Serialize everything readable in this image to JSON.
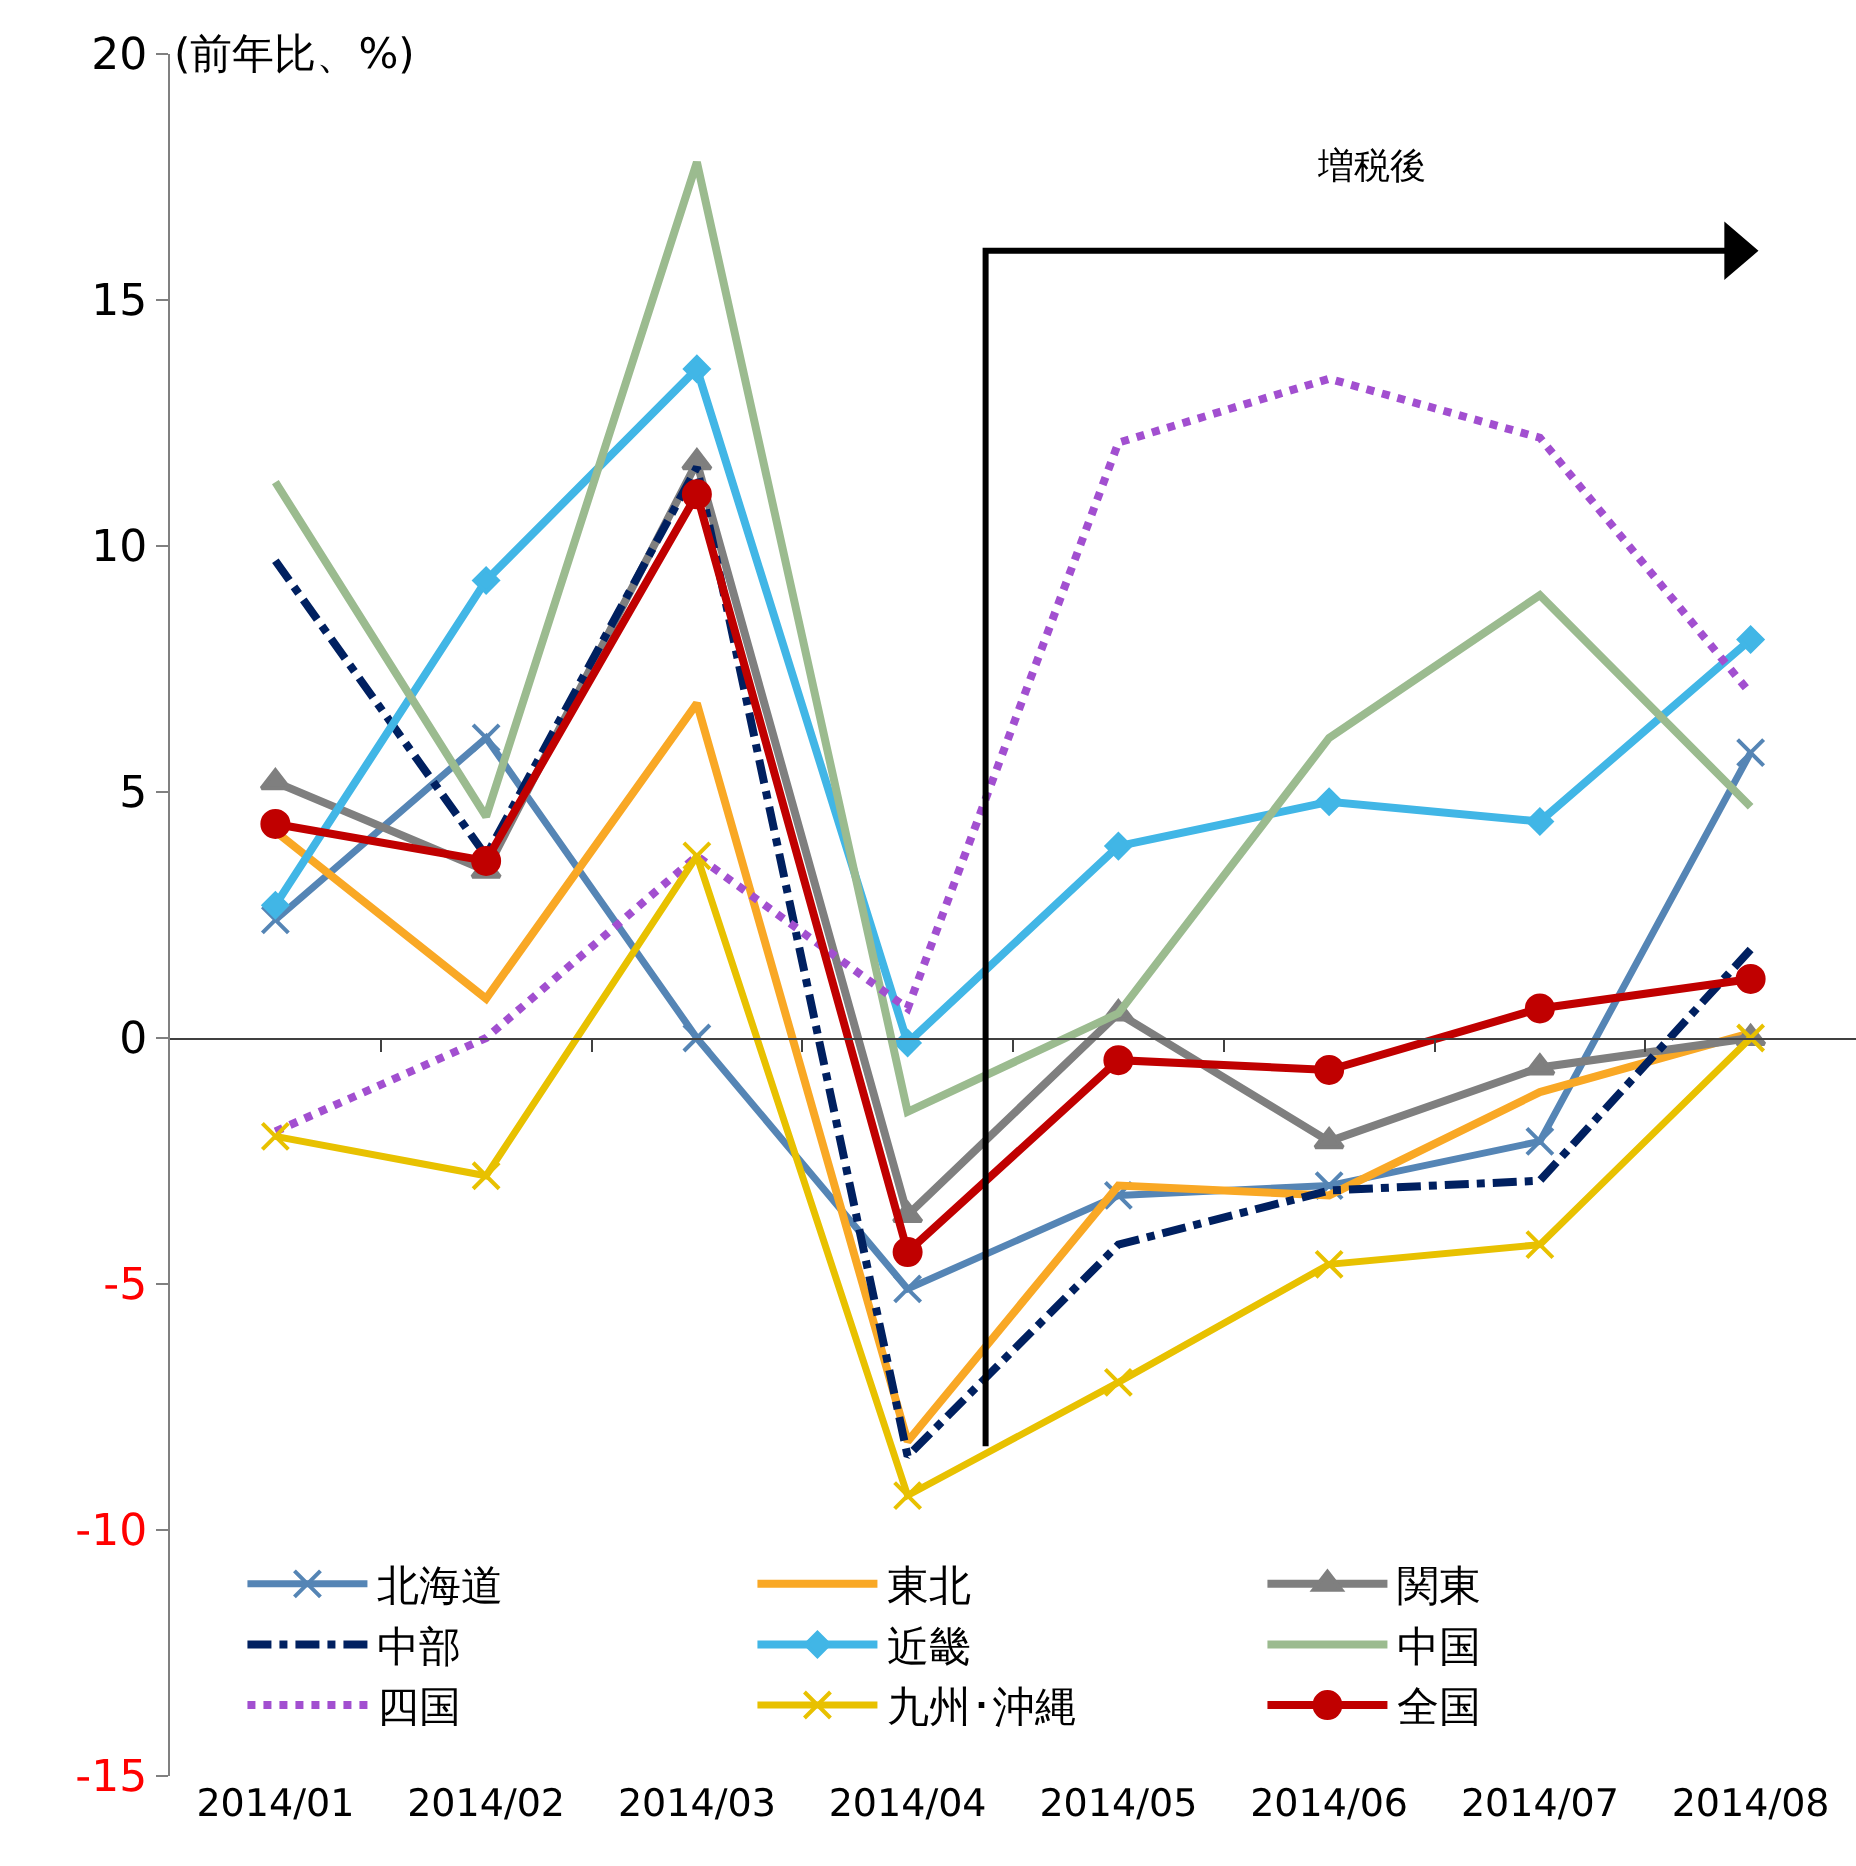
{
  "chart_data": {
    "type": "line",
    "ylabel": "(前年比、%)",
    "categories": [
      "2014/01",
      "2014/02",
      "2014/03",
      "2014/04",
      "2014/05",
      "2014/06",
      "2014/07",
      "2014/08"
    ],
    "series": [
      {
        "name": "北海道",
        "color": "#5585b5",
        "marker": "cross",
        "line_style": "solid",
        "values": [
          2.4,
          6.1,
          0,
          -5.1,
          -3.2,
          -3.0,
          -2.1,
          5.8
        ]
      },
      {
        "name": "東北",
        "color": "#f9a825",
        "marker": "none",
        "line_style": "solid",
        "values": [
          4.2,
          0.8,
          6.8,
          -8.2,
          -3.0,
          -3.2,
          -1.1,
          0.1
        ]
      },
      {
        "name": "関東",
        "color": "#7f7f7f",
        "marker": "triangle",
        "line_style": "solid",
        "values": [
          5.2,
          3.4,
          11.7,
          -3.6,
          0.5,
          -2.1,
          -0.6,
          0
        ]
      },
      {
        "name": "中部",
        "color": "#002060",
        "marker": "none",
        "line_style": "dashed",
        "values": [
          9.7,
          3.7,
          11.6,
          -8.5,
          -4.2,
          -3.1,
          -2.9,
          1.8
        ]
      },
      {
        "name": "近畿",
        "color": "#41b6e6",
        "marker": "diamond",
        "line_style": "solid",
        "values": [
          2.7,
          9.3,
          13.6,
          -0.1,
          3.9,
          4.8,
          4.4,
          8.1
        ]
      },
      {
        "name": "中国",
        "color": "#9bbb8f",
        "marker": "none",
        "line_style": "solid",
        "values": [
          11.3,
          4.5,
          17.8,
          -1.5,
          0.5,
          6.1,
          9.0,
          4.7
        ]
      },
      {
        "name": "四国",
        "color": "#a24fd0",
        "marker": "none",
        "line_style": "dotted",
        "values": [
          -1.9,
          0,
          3.7,
          0.6,
          12.1,
          13.4,
          12.2,
          7.0
        ]
      },
      {
        "name": "九州･沖縄",
        "color": "#e8c100",
        "marker": "cross",
        "line_style": "solid",
        "values": [
          -2.0,
          -2.8,
          3.7,
          -9.3,
          -7.0,
          -4.6,
          -4.2,
          0
        ]
      },
      {
        "name": "全国",
        "color": "#c00000",
        "marker": "circle",
        "line_style": "solid",
        "values": [
          4.35,
          3.6,
          11.05,
          -4.35,
          -0.45,
          -0.65,
          0.6,
          1.2
        ]
      }
    ],
    "ylim": [
      -15,
      20
    ],
    "yticks": [
      -15,
      -10,
      -5,
      0,
      5,
      10,
      15,
      20
    ],
    "annotations": [
      "増税後"
    ],
    "legend": "bottom"
  }
}
